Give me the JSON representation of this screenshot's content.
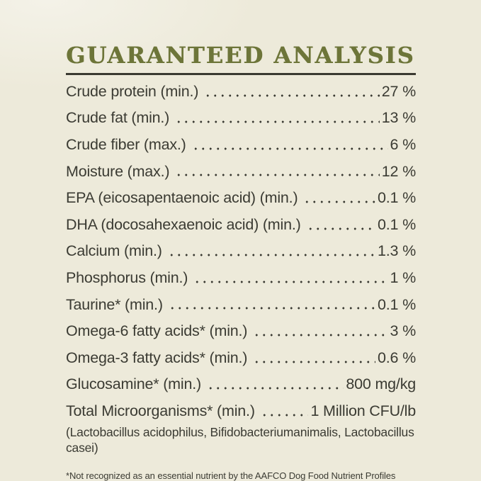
{
  "title": "GUARANTEED ANALYSIS",
  "colors": {
    "background": "#edeada",
    "background_light": "#f4f2e8",
    "title": "#6d7539",
    "rule": "#3a3a31",
    "text": "#3b3b33"
  },
  "table": {
    "rows": [
      {
        "label": "Crude protein (min.)",
        "value": "27 %"
      },
      {
        "label": "Crude fat (min.)",
        "value": "13 %"
      },
      {
        "label": "Crude fiber (max.)",
        "value": "6 %"
      },
      {
        "label": "Moisture (max.)",
        "value": "12 %"
      },
      {
        "label": "EPA (eicosapentaenoic acid) (min.)",
        "value": "0.1 %"
      },
      {
        "label": "DHA (docosahexaenoic acid) (min.)",
        "value": "0.1 %"
      },
      {
        "label": "Calcium (min.)",
        "value": "1.3 %"
      },
      {
        "label": "Phosphorus (min.)",
        "value": "1 %"
      },
      {
        "label": "Taurine* (min.)",
        "value": "0.1 %"
      },
      {
        "label": "Omega-6 fatty acids* (min.)",
        "value": "3 %"
      },
      {
        "label": "Omega-3 fatty acids* (min.)",
        "value": "0.6 %"
      },
      {
        "label": "Glucosamine* (min.)",
        "value": "800 mg/kg"
      },
      {
        "label": "Total Microorganisms* (min.)",
        "value": "1 Million CFU/lb"
      }
    ],
    "microorganisms_note": "(Lactobacillus acidophilus, Bifidobacteriumanimalis, Lactobacillus casei)"
  },
  "footnote": "*Not recognized as an essential nutrient by the AAFCO Dog Food Nutrient Profiles"
}
